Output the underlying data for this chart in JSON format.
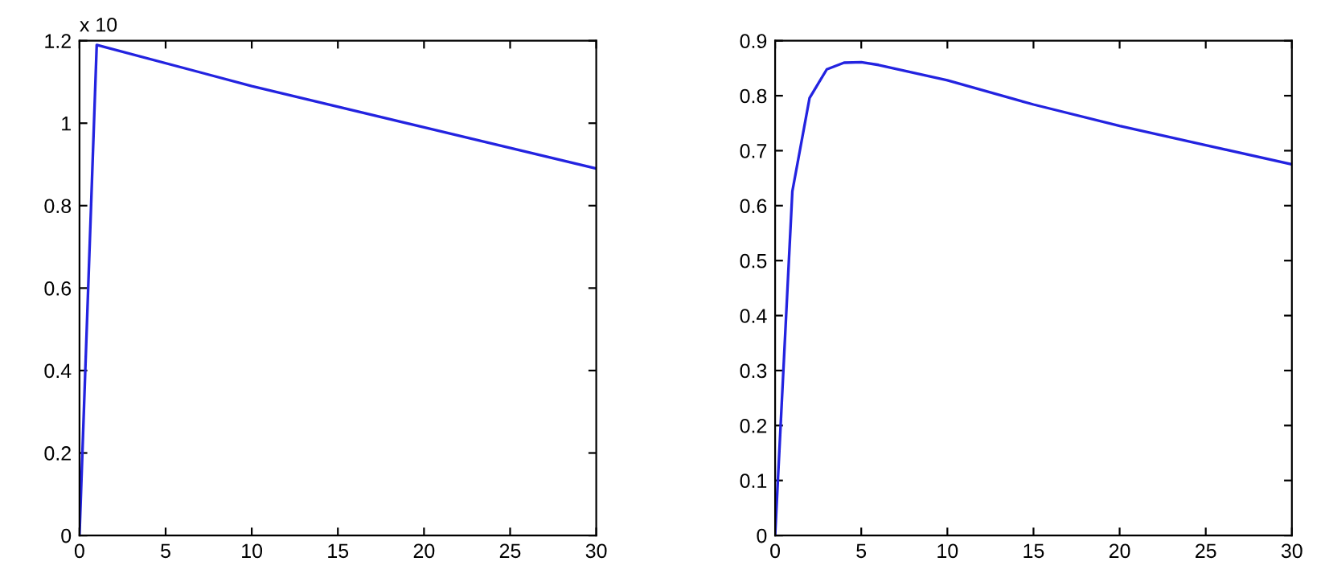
{
  "chart_data": [
    {
      "type": "line",
      "x": [
        0,
        1,
        10,
        20,
        30
      ],
      "series": [
        {
          "color": "#2323e0",
          "values": [
            0,
            1.19,
            1.09,
            0.99,
            0.89
          ]
        }
      ],
      "xlim": [
        0,
        30
      ],
      "xticks": [
        0,
        5,
        10,
        15,
        20,
        25,
        30
      ],
      "ylim": [
        0,
        1.2
      ],
      "yticks": [
        0,
        0.2,
        0.4,
        0.6,
        0.8,
        1,
        1.2
      ],
      "annotations": [
        "x 10"
      ],
      "grid": false,
      "legend": false
    },
    {
      "type": "line",
      "x": [
        0,
        1,
        2,
        3,
        4,
        5,
        6,
        10,
        15,
        20,
        25,
        30
      ],
      "series": [
        {
          "color": "#2323e0",
          "values": [
            0,
            0.626,
            0.796,
            0.848,
            0.86,
            0.861,
            0.856,
            0.828,
            0.784,
            0.745,
            0.71,
            0.675
          ]
        }
      ],
      "xlim": [
        0,
        30
      ],
      "xticks": [
        0,
        5,
        10,
        15,
        20,
        25,
        30
      ],
      "ylim": [
        0,
        0.9
      ],
      "yticks": [
        0,
        0.1,
        0.2,
        0.3,
        0.4,
        0.5,
        0.6,
        0.7,
        0.8,
        0.9
      ],
      "grid": false,
      "legend": false
    }
  ]
}
